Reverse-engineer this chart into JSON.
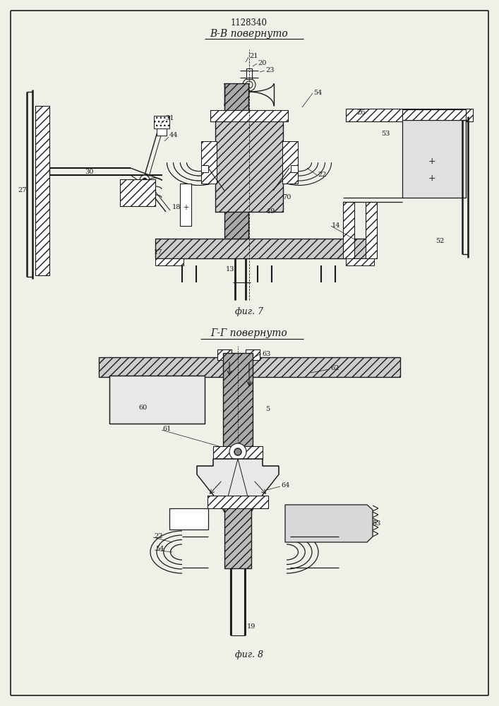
{
  "title": "1128340",
  "fig7_label": "В-В повернуто",
  "fig7_caption": "фиг. 7",
  "fig8_label": "Г-Г повернуто",
  "fig8_caption": "фиг. 8",
  "bg": "#f0efe8",
  "lc": "#1a1a1a"
}
